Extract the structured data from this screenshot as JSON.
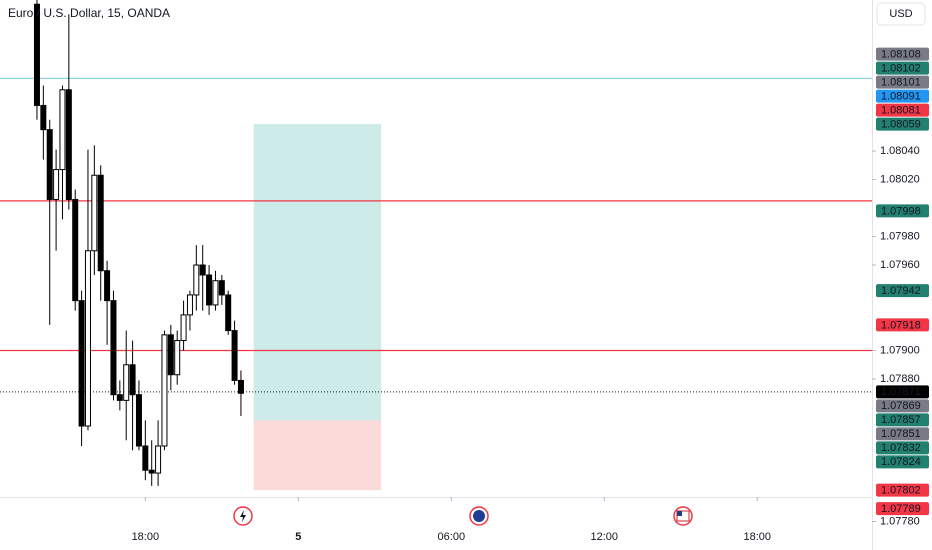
{
  "chart_data": {
    "type": "candlestick",
    "title": "Euro / U.S. Dollar, 15, OANDA",
    "currency": "USD",
    "x": [
      0,
      1,
      2,
      3,
      4,
      5,
      6,
      7,
      8,
      9,
      10,
      11,
      12,
      13,
      14,
      15,
      16,
      17,
      18,
      19,
      20,
      21,
      22,
      23,
      24,
      25,
      26,
      27,
      28,
      29,
      30,
      31,
      32
    ],
    "open": [
      1.08143,
      1.08072,
      1.08055,
      1.08006,
      1.08027,
      1.08083,
      1.08006,
      1.07935,
      1.07847,
      1.0797,
      1.08023,
      1.07956,
      1.07935,
      1.07869,
      1.07865,
      1.0789,
      1.07869,
      1.07833,
      1.07816,
      1.07814,
      1.07833,
      1.07911,
      1.07883,
      1.07907,
      1.07925,
      1.07939,
      1.0796,
      1.07953,
      1.07932,
      1.07949,
      1.07939,
      1.07914,
      1.07879
    ],
    "high": [
      1.08146,
      1.08086,
      1.08062,
      1.08041,
      1.08086,
      1.08136,
      1.08013,
      1.07942,
      1.08041,
      1.08044,
      1.0803,
      1.07963,
      1.07942,
      1.07879,
      1.07914,
      1.07907,
      1.07879,
      1.07851,
      1.07837,
      1.07851,
      1.07914,
      1.07918,
      1.07914,
      1.07935,
      1.07942,
      1.07974,
      1.07974,
      1.0796,
      1.07956,
      1.07953,
      1.07942,
      1.07921,
      1.07886
    ],
    "low": [
      1.08062,
      1.08034,
      1.07918,
      1.0797,
      1.07992,
      1.07999,
      1.07928,
      1.07833,
      1.07844,
      1.07953,
      1.07935,
      1.07904,
      1.07865,
      1.07858,
      1.07837,
      1.0783,
      1.0783,
      1.07809,
      1.07805,
      1.07805,
      1.0783,
      1.07872,
      1.07876,
      1.079,
      1.07914,
      1.07928,
      1.07928,
      1.07925,
      1.07928,
      1.07932,
      1.07911,
      1.07876,
      1.07854
    ],
    "close": [
      1.08072,
      1.08055,
      1.08006,
      1.08027,
      1.08083,
      1.08006,
      1.07935,
      1.07847,
      1.0797,
      1.08023,
      1.07956,
      1.07935,
      1.07869,
      1.07865,
      1.0789,
      1.07869,
      1.07833,
      1.07816,
      1.07814,
      1.07833,
      1.07911,
      1.07883,
      1.07907,
      1.07925,
      1.07939,
      1.0796,
      1.07953,
      1.07932,
      1.07949,
      1.07939,
      1.07914,
      1.07879,
      1.0787
    ],
    "up_color": "#ffffff",
    "down_color": "#000000",
    "xlim": [
      -5.8,
      131
    ],
    "xticks": [
      {
        "value": 17,
        "label": "18:00"
      },
      {
        "value": 41,
        "label": "5"
      },
      {
        "value": 65,
        "label": "06:00"
      },
      {
        "value": 89,
        "label": "12:00"
      },
      {
        "value": 113,
        "label": "18:00"
      }
    ],
    "ylim": [
      1.0776,
      1.08146
    ],
    "yticks": [
      {
        "value": 1.0804,
        "label": "1.08040"
      },
      {
        "value": 1.0802,
        "label": "1.08020"
      },
      {
        "value": 1.0798,
        "label": "1.07980"
      },
      {
        "value": 1.0796,
        "label": "1.07960"
      },
      {
        "value": 1.079,
        "label": "1.07900"
      },
      {
        "value": 1.0788,
        "label": "1.07880"
      },
      {
        "value": 1.0778,
        "label": "1.07780"
      }
    ],
    "hlines": [
      {
        "value": 1.08091,
        "color": "#8fd4ea"
      },
      {
        "value": 1.08005,
        "color": "#f23645"
      },
      {
        "value": 1.079,
        "color": "#f23645"
      }
    ],
    "price_line": 1.07871,
    "position": {
      "x_start": 34,
      "x_end": 54,
      "target": 1.08059,
      "entry": 1.07851,
      "stop": 1.07802,
      "profit_color": "#cdebe9",
      "loss_color": "#fbdada"
    },
    "price_labels": [
      {
        "value": 1.08108,
        "color": "#787b86"
      },
      {
        "value": 1.08102,
        "color": "#22806f"
      },
      {
        "value": 1.08101,
        "color": "#787b86"
      },
      {
        "value": 1.08091,
        "color": "#2196f3"
      },
      {
        "value": 1.08081,
        "color": "#f23645"
      },
      {
        "value": 1.08059,
        "color": "#22806f"
      },
      {
        "value": 1.07998,
        "color": "#22806f"
      },
      {
        "value": 1.07942,
        "color": "#22806f"
      },
      {
        "value": 1.07918,
        "color": "#f23645"
      },
      {
        "value": 1.07871,
        "color": "#000000"
      },
      {
        "value": 1.07869,
        "color": "#787b86"
      },
      {
        "value": 1.07857,
        "color": "#22806f"
      },
      {
        "value": 1.07851,
        "color": "#787b86"
      },
      {
        "value": 1.07832,
        "color": "#22806f"
      },
      {
        "value": 1.07824,
        "color": "#22806f"
      },
      {
        "value": 1.07802,
        "color": "#f23645"
      },
      {
        "value": 1.07789,
        "color": "#f23645"
      }
    ]
  }
}
